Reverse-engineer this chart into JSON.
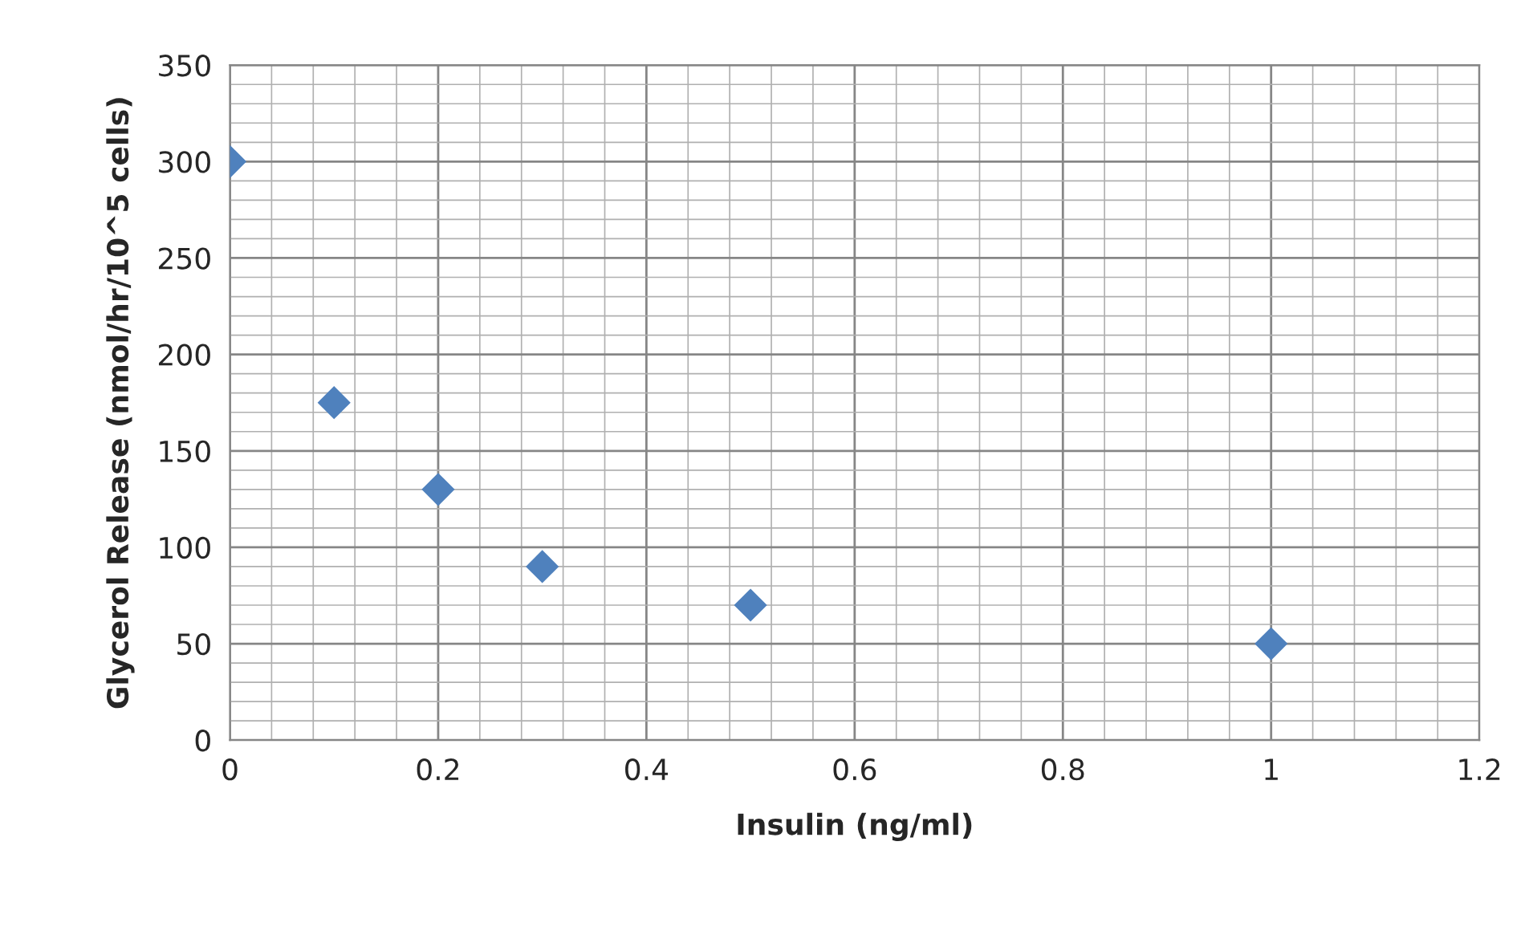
{
  "chart_data": {
    "type": "scatter",
    "xlabel": "Insulin (ng/ml)",
    "ylabel": "Glycerol Release (nmol/hr/10^5 cells)",
    "x": [
      0,
      0.1,
      0.2,
      0.3,
      0.5,
      1
    ],
    "series": [
      {
        "color": "#4f81bd",
        "values": [
          300,
          175,
          130,
          90,
          70,
          50
        ]
      }
    ],
    "xlim": [
      0,
      1.2
    ],
    "xticks": [
      0,
      0.2,
      0.4,
      0.6,
      0.8,
      1,
      1.2
    ],
    "ylim": [
      0,
      350
    ],
    "yticks": [
      0,
      50,
      100,
      150,
      200,
      250,
      300,
      350
    ],
    "grid": true,
    "marker": "diamond",
    "legend": false
  }
}
